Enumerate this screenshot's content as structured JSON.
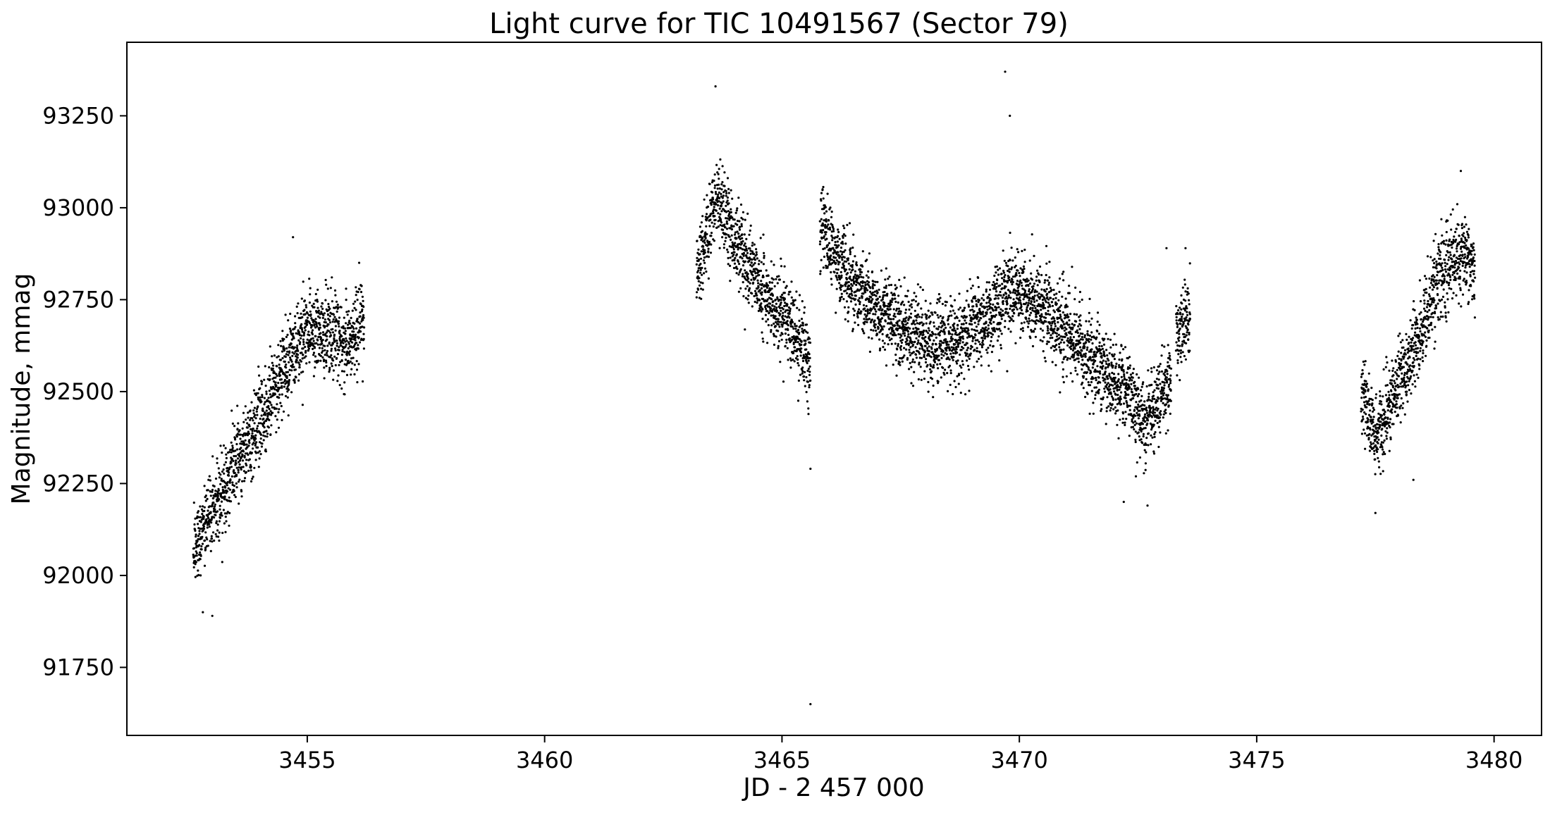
{
  "chart_data": {
    "type": "scatter",
    "title": "Light curve for TIC 10491567 (Sector 79)",
    "xlabel": "JD - 2 457 000",
    "ylabel": "Magnitude, mmag",
    "xlim": [
      3451.2,
      3481.0
    ],
    "ylim": [
      91565,
      93450
    ],
    "xticks": [
      3455,
      3460,
      3465,
      3470,
      3475,
      3480
    ],
    "yticks": [
      91750,
      92000,
      92250,
      92500,
      92750,
      93000,
      93250
    ],
    "grid": false,
    "legend": "none",
    "marker_color": "#000000",
    "segments": [
      {
        "x_start": 3452.6,
        "x_end": 3456.2,
        "trend": [
          [
            3452.6,
            92080
          ],
          [
            3453.0,
            92170
          ],
          [
            3453.5,
            92310
          ],
          [
            3454.0,
            92420
          ],
          [
            3454.5,
            92560
          ],
          [
            3455.0,
            92680
          ],
          [
            3455.5,
            92660
          ],
          [
            3455.8,
            92620
          ],
          [
            3456.2,
            92720
          ]
        ],
        "scatter_mmag": 55
      },
      {
        "x_start": 3463.2,
        "x_end": 3465.6,
        "trend": [
          [
            3463.2,
            92820
          ],
          [
            3463.6,
            93020
          ],
          [
            3463.9,
            92950
          ],
          [
            3464.3,
            92850
          ],
          [
            3464.8,
            92730
          ],
          [
            3465.2,
            92680
          ],
          [
            3465.6,
            92560
          ]
        ],
        "scatter_mmag": 55
      },
      {
        "x_start": 3465.8,
        "x_end": 3473.2,
        "trend": [
          [
            3465.8,
            92950
          ],
          [
            3466.3,
            92820
          ],
          [
            3467.0,
            92720
          ],
          [
            3467.8,
            92650
          ],
          [
            3468.5,
            92630
          ],
          [
            3469.2,
            92680
          ],
          [
            3469.8,
            92780
          ],
          [
            3470.5,
            92730
          ],
          [
            3471.0,
            92660
          ],
          [
            3471.6,
            92570
          ],
          [
            3472.2,
            92510
          ],
          [
            3472.6,
            92420
          ],
          [
            3473.2,
            92530
          ]
        ],
        "scatter_mmag": 55
      },
      {
        "x_start": 3473.3,
        "x_end": 3473.6,
        "trend": [
          [
            3473.3,
            92650
          ],
          [
            3473.6,
            92720
          ]
        ],
        "scatter_mmag": 55
      },
      {
        "x_start": 3477.2,
        "x_end": 3479.6,
        "trend": [
          [
            3477.2,
            92520
          ],
          [
            3477.5,
            92380
          ],
          [
            3477.9,
            92490
          ],
          [
            3478.4,
            92640
          ],
          [
            3478.8,
            92800
          ],
          [
            3479.3,
            92880
          ],
          [
            3479.6,
            92820
          ]
        ],
        "scatter_mmag": 55
      }
    ],
    "outliers": [
      [
        3463.6,
        93330
      ],
      [
        3469.7,
        93370
      ],
      [
        3469.8,
        93250
      ],
      [
        3465.6,
        91650
      ],
      [
        3465.6,
        92290
      ],
      [
        3452.8,
        91900
      ],
      [
        3453.0,
        91890
      ],
      [
        3479.3,
        93100
      ],
      [
        3477.5,
        92170
      ],
      [
        3478.3,
        92260
      ],
      [
        3472.7,
        92190
      ],
      [
        3472.2,
        92200
      ],
      [
        3473.1,
        92890
      ],
      [
        3473.5,
        92890
      ],
      [
        3454.7,
        92920
      ]
    ]
  }
}
